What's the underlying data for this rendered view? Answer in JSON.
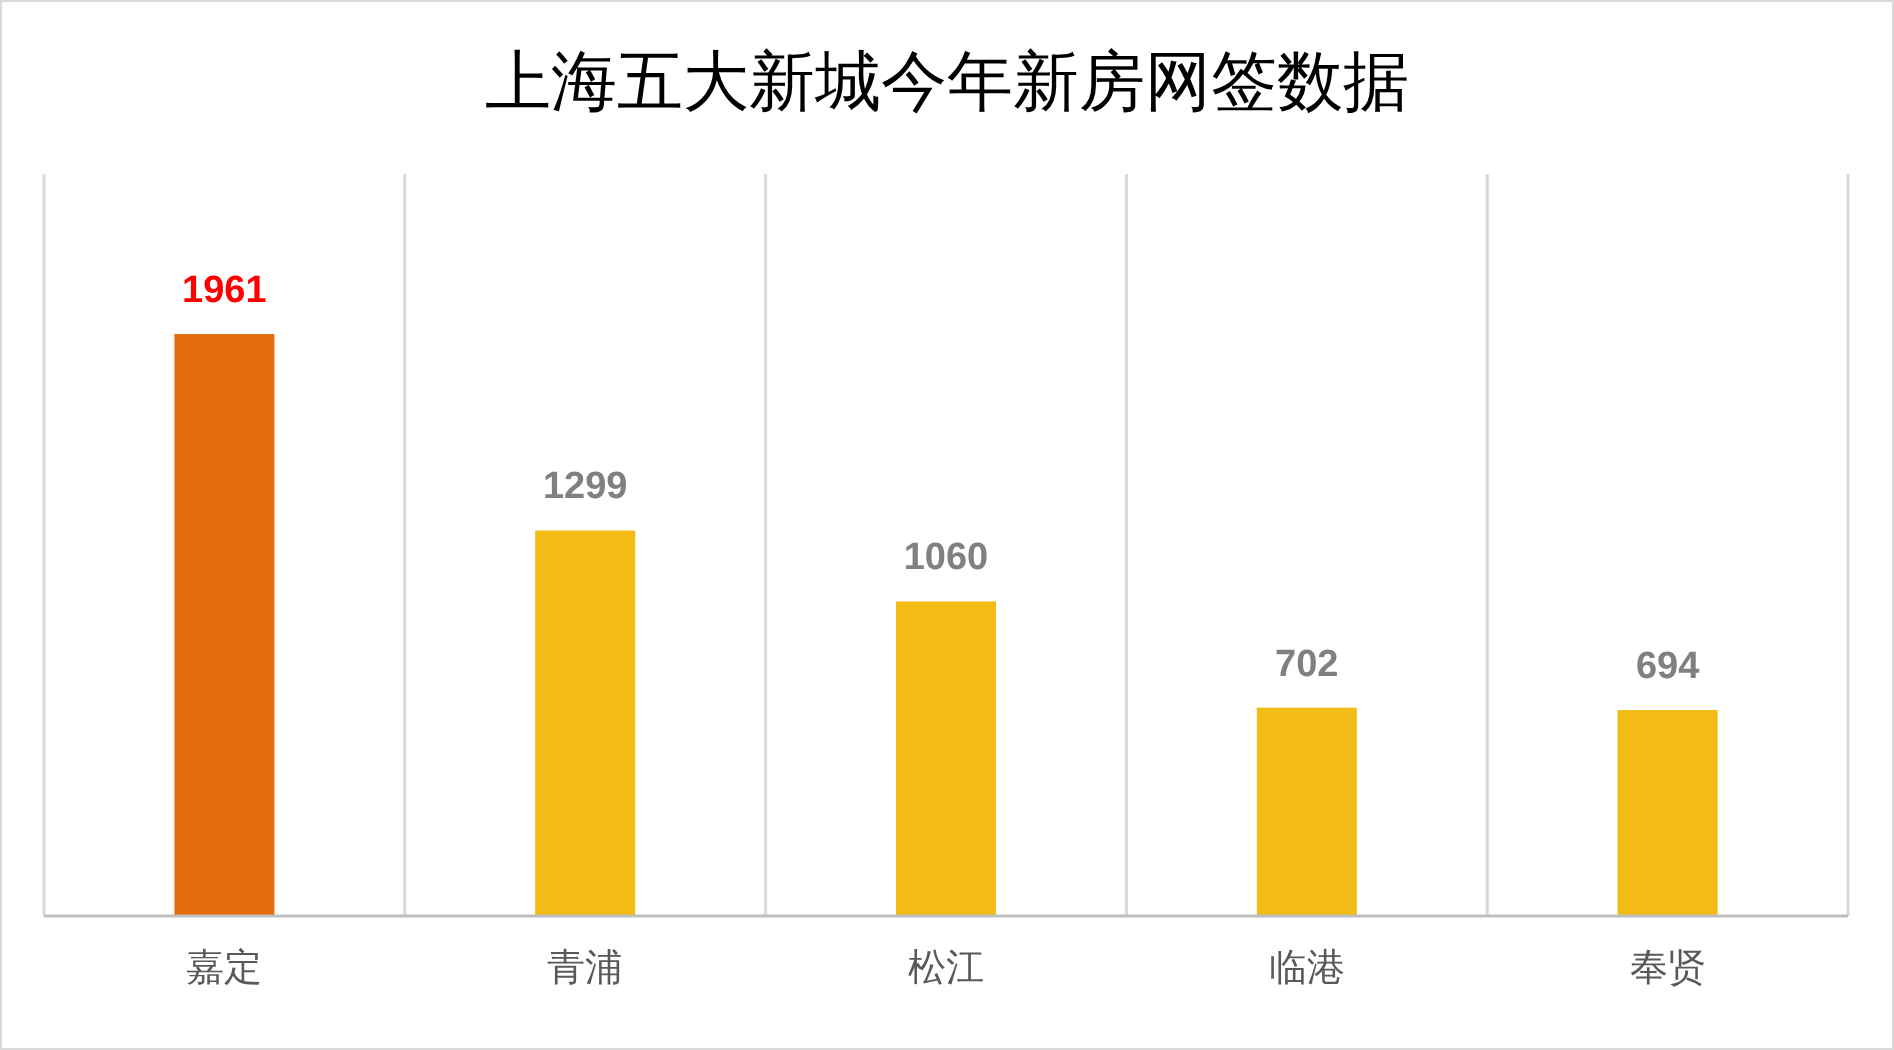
{
  "chart_data": {
    "type": "bar",
    "title": "上海五大新城今年新房网签数据",
    "categories": [
      "嘉定",
      "青浦",
      "松江",
      "临港",
      "奉贤"
    ],
    "values": [
      1961,
      1299,
      1060,
      702,
      694
    ],
    "colors": [
      "#e36c0a",
      "#f2bc15",
      "#f2bc15",
      "#f2bc15",
      "#f2bc15"
    ],
    "data_labels": true,
    "grid": "x"
  }
}
